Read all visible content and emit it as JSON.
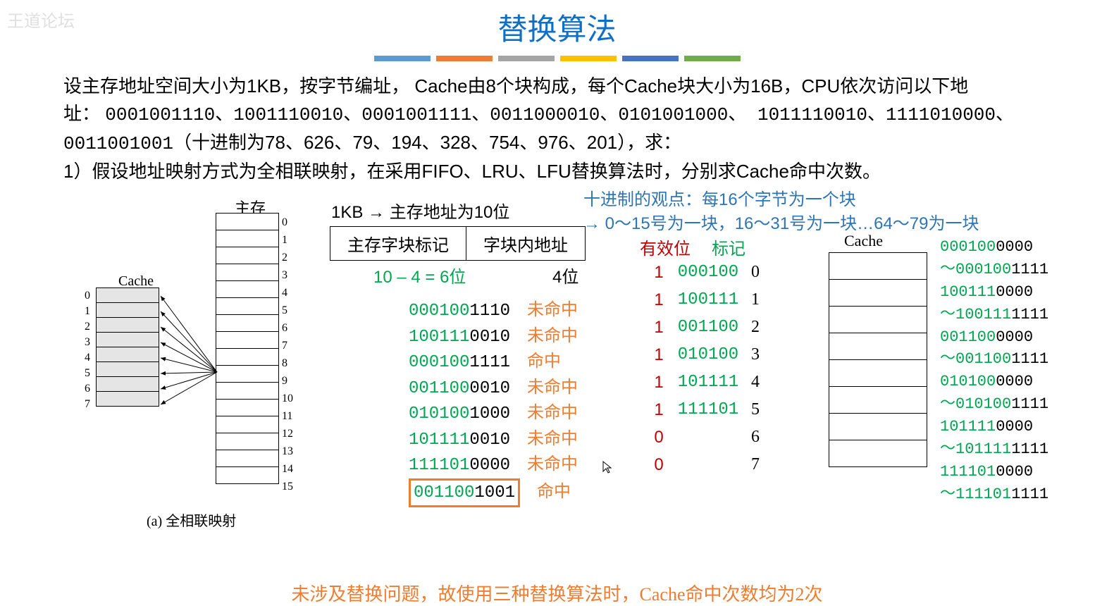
{
  "watermark": "王道论坛",
  "title": "替换算法",
  "bar_colors": [
    "#5b9bd5",
    "#ed7d31",
    "#a5a5a5",
    "#ffc000",
    "#4472c4",
    "#70ad47"
  ],
  "problem_html": "设主存地址空间大小为1KB，按字节编址， Cache由8个块构成，每个Cache块大小为16B，CPU依次访问以下地址： 0001001110、1001110010、0001001111、0011000010、0101001000、 1011110010、1111010000、0011001001（十进制为78、626、79、194、328、754、976、201），求：\n1）假设地址映射方式为全相联映射，在采用FIFO、LRU、LFU替换算法时，分别求Cache命中次数。",
  "mem_label": "主存",
  "cache_label_left": "Cache",
  "caption": "(a) 全相联映射",
  "addr_title": "1KB → 主存地址为10位",
  "addr_header": [
    "主存字块标记",
    "字块内地址"
  ],
  "addr_bits": [
    "10 – 4 = 6位",
    "4位"
  ],
  "blue_note1": "十进制的观点：每16个字节为一个块",
  "blue_note2": "→ 0～15号为一块，16～31号为一块…64～79为一块",
  "valid_label": "有效位",
  "tag_label": "标记",
  "cache_col_label": "Cache",
  "accesses": [
    {
      "tag": "000100",
      "off": "1110",
      "res": "未命中"
    },
    {
      "tag": "100111",
      "off": "0010",
      "res": "未命中"
    },
    {
      "tag": "000100",
      "off": "1111",
      "res": "命中"
    },
    {
      "tag": "001100",
      "off": "0010",
      "res": "未命中"
    },
    {
      "tag": "010100",
      "off": "1000",
      "res": "未命中"
    },
    {
      "tag": "101111",
      "off": "0010",
      "res": "未命中"
    },
    {
      "tag": "111101",
      "off": "0000",
      "res": "未命中"
    },
    {
      "tag": "001100",
      "off": "1001",
      "res": "命中",
      "boxed": true
    }
  ],
  "cache_state": [
    {
      "v": "1",
      "t": "000100",
      "i": "0"
    },
    {
      "v": "1",
      "t": "100111",
      "i": "1"
    },
    {
      "v": "1",
      "t": "001100",
      "i": "2"
    },
    {
      "v": "1",
      "t": "010100",
      "i": "3"
    },
    {
      "v": "1",
      "t": "101111",
      "i": "4"
    },
    {
      "v": "1",
      "t": "111101",
      "i": "5"
    },
    {
      "v": "0",
      "t": "",
      "i": "6"
    },
    {
      "v": "0",
      "t": "",
      "i": "7"
    }
  ],
  "ranges": [
    {
      "a": "000100",
      "b": "0000"
    },
    {
      "a": "～000100",
      "b": "1111"
    },
    {
      "a": "100111",
      "b": "0000"
    },
    {
      "a": "～100111",
      "b": "1111"
    },
    {
      "a": "001100",
      "b": "0000"
    },
    {
      "a": "～001100",
      "b": "1111"
    },
    {
      "a": "010100",
      "b": "0000"
    },
    {
      "a": "～010100",
      "b": "1111"
    },
    {
      "a": "101111",
      "b": "0000"
    },
    {
      "a": "～101111",
      "b": "1111"
    },
    {
      "a": "111101",
      "b": "0000"
    },
    {
      "a": "～111101",
      "b": "1111"
    }
  ],
  "conclusion": "未涉及替换问题，故使用三种替换算法时，Cache命中次数均为2次",
  "colors": {
    "green": "#00a651",
    "blue": "#2e75b6",
    "orange": "#ed7d31",
    "red": "#c00000"
  }
}
